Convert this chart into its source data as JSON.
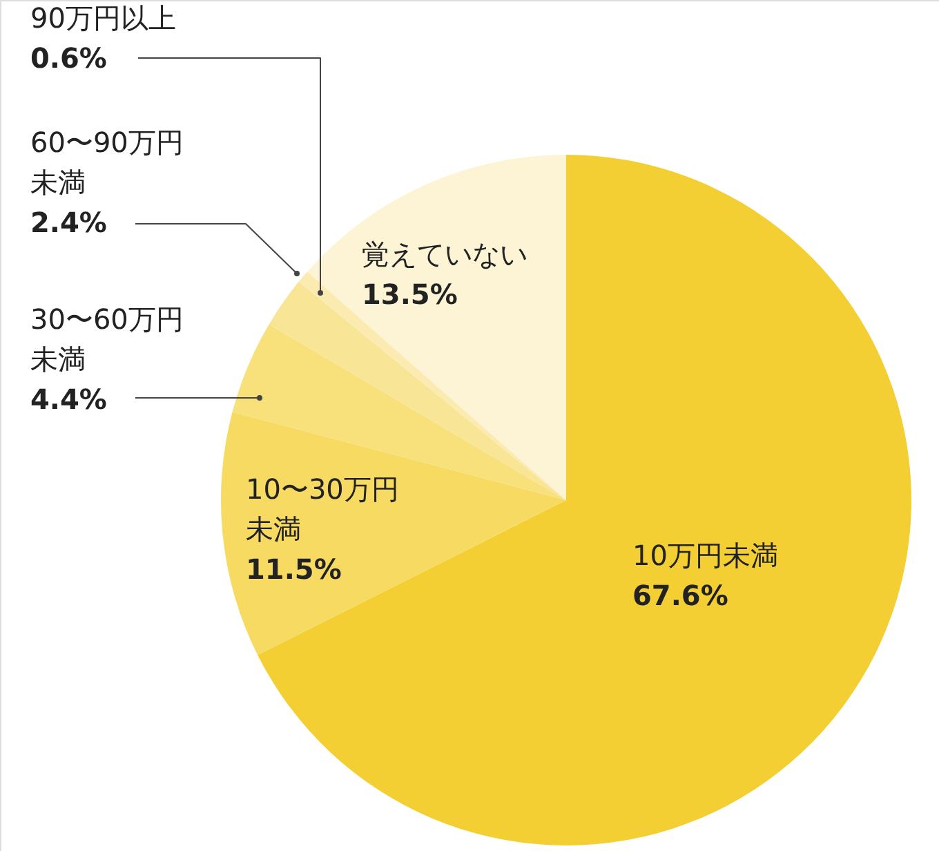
{
  "chart_data": {
    "type": "pie",
    "categories": [
      "10万円未満",
      "10〜30万円未満",
      "30〜60万円未満",
      "60〜90万円未満",
      "90万円以上",
      "覚えていない"
    ],
    "values": [
      67.6,
      11.5,
      4.4,
      2.4,
      0.6,
      13.5
    ],
    "colors": [
      "#f4cf33",
      "#f6da61",
      "#f8e07a",
      "#f9e596",
      "#fbebb0",
      "#fdf4d6"
    ],
    "value_labels": [
      "67.6%",
      "11.5%",
      "4.4%",
      "2.4%",
      "0.6%",
      "13.5%"
    ]
  }
}
